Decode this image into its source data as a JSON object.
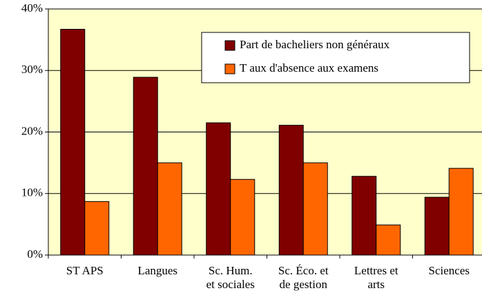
{
  "chart_data": {
    "type": "bar",
    "categories": [
      "ST APS",
      "Langues",
      "Sc. Hum.\net sociales",
      "Sc. Éco. et\nde gestion",
      "Lettres et\narts",
      "Sciences"
    ],
    "series": [
      {
        "name": "Part de bacheliers non généraux",
        "color": "#800000",
        "values": [
          36.7,
          28.9,
          21.5,
          21.1,
          12.8,
          9.4
        ]
      },
      {
        "name": "T aux d'absence aux examens",
        "color": "#ff6600",
        "values": [
          8.7,
          15.0,
          12.3,
          15.0,
          4.9,
          14.1
        ]
      }
    ],
    "ylim": [
      0,
      40
    ],
    "yticks": [
      {
        "value": 0,
        "label": "0%"
      },
      {
        "value": 10,
        "label": "10%"
      },
      {
        "value": 20,
        "label": "20%"
      },
      {
        "value": 30,
        "label": "30%"
      },
      {
        "value": 40,
        "label": "40%"
      }
    ],
    "grid": true,
    "background": "#ffffcc",
    "legend": "top-right"
  }
}
